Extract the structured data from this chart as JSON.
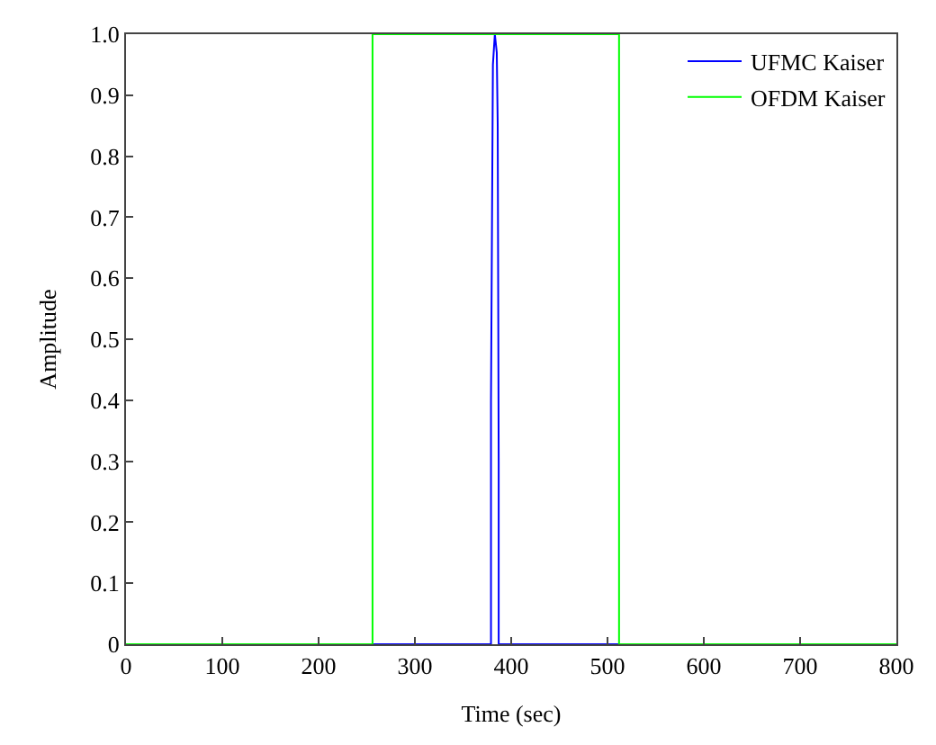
{
  "chart_data": {
    "type": "line",
    "xlabel": "Time (sec)",
    "ylabel": "Amplitude",
    "xlim": [
      0,
      800
    ],
    "xticks": [
      0,
      100,
      200,
      300,
      400,
      500,
      600,
      700,
      800
    ],
    "ylim": [
      0,
      1.0
    ],
    "yticks": [
      0,
      0.1,
      0.2,
      0.3,
      0.4,
      0.5,
      0.6,
      0.7,
      0.8,
      0.9,
      {
        "value": 1.0,
        "label": "1.0"
      }
    ],
    "legend": "top right",
    "series": [
      {
        "name": "UFMC Kaiser",
        "color": "#0000ff",
        "x": [
          0,
          379,
          379,
          381,
          383,
          385,
          386,
          387,
          387,
          800
        ],
        "values": [
          0,
          0,
          0.4,
          0.95,
          1.0,
          0.97,
          0.85,
          0.3,
          0,
          0
        ]
      },
      {
        "name": "OFDM Kaiser",
        "color": "#00ff00",
        "x": [
          0,
          256,
          256,
          512,
          512,
          800
        ],
        "values": [
          0,
          0,
          1.0,
          1.0,
          0,
          0
        ]
      }
    ]
  }
}
